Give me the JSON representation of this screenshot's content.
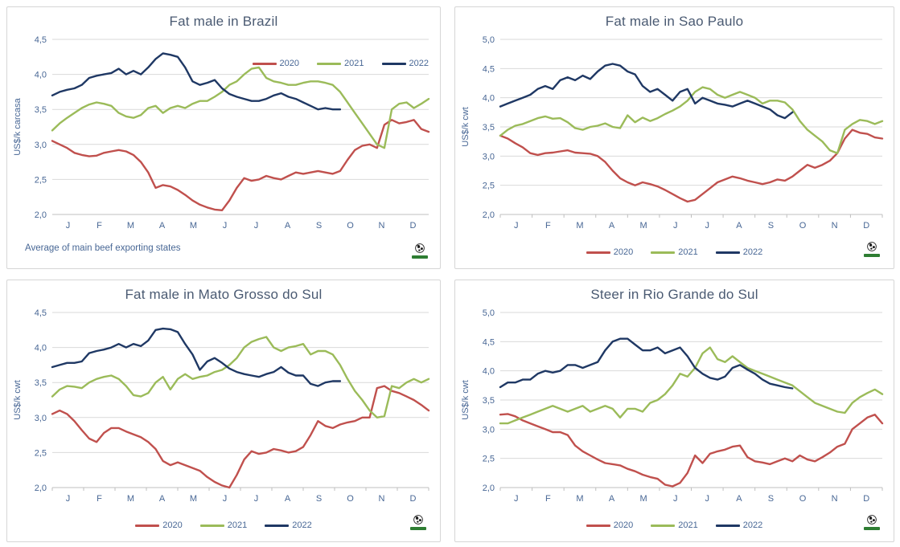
{
  "colors": {
    "red2020": "#C0504D",
    "green2021": "#9BBB59",
    "navy2022": "#1F3864",
    "grid": "#D9D9D9",
    "axis_line": "#BFBFBF",
    "tick_text": "#486795",
    "title_text": "#4A5A72"
  },
  "footnote": "Average  of main beef exporting states",
  "logo_name": "globe-logo",
  "chart_data": [
    {
      "type": "line",
      "title": "Fat male in Brazil",
      "ylabel": "US$/k carcasa",
      "ylim": [
        2.0,
        4.5
      ],
      "ytick_step": 0.5,
      "decimal_separator": ",",
      "grid": true,
      "axis_ticks": false,
      "legend_position": "top-right-inside",
      "x_unit": "week",
      "categories": [
        "J",
        "F",
        "M",
        "A",
        "M",
        "J",
        "J",
        "A",
        "S",
        "O",
        "N",
        "D"
      ],
      "series": [
        {
          "name": "2020",
          "color": "#C0504D",
          "values": [
            3.05,
            3.0,
            2.95,
            2.88,
            2.85,
            2.83,
            2.84,
            2.88,
            2.9,
            2.92,
            2.9,
            2.85,
            2.75,
            2.6,
            2.38,
            2.42,
            2.4,
            2.35,
            2.28,
            2.2,
            2.14,
            2.1,
            2.07,
            2.06,
            2.2,
            2.38,
            2.52,
            2.48,
            2.5,
            2.55,
            2.52,
            2.5,
            2.55,
            2.6,
            2.58,
            2.6,
            2.62,
            2.6,
            2.58,
            2.62,
            2.78,
            2.92,
            2.98,
            3.0,
            2.95,
            3.28,
            3.35,
            3.3,
            3.32,
            3.35,
            3.22,
            3.18
          ]
        },
        {
          "name": "2021",
          "color": "#9BBB59",
          "values": [
            3.2,
            3.3,
            3.38,
            3.45,
            3.52,
            3.57,
            3.6,
            3.58,
            3.55,
            3.45,
            3.4,
            3.38,
            3.42,
            3.52,
            3.55,
            3.45,
            3.52,
            3.55,
            3.52,
            3.58,
            3.62,
            3.62,
            3.68,
            3.75,
            3.85,
            3.9,
            4.0,
            4.08,
            4.1,
            3.95,
            3.9,
            3.88,
            3.85,
            3.85,
            3.88,
            3.9,
            3.9,
            3.88,
            3.85,
            3.75,
            3.6,
            3.45,
            3.3,
            3.15,
            3.0,
            2.95,
            3.5,
            3.58,
            3.6,
            3.52,
            3.58,
            3.65
          ]
        },
        {
          "name": "2022",
          "color": "#1F3864",
          "values": [
            3.7,
            3.75,
            3.78,
            3.8,
            3.85,
            3.95,
            3.98,
            4.0,
            4.02,
            4.08,
            4.0,
            4.05,
            4.0,
            4.1,
            4.22,
            4.3,
            4.28,
            4.25,
            4.1,
            3.9,
            3.85,
            3.88,
            3.92,
            3.8,
            3.72,
            3.68,
            3.65,
            3.62,
            3.62,
            3.65,
            3.7,
            3.73,
            3.68,
            3.65,
            3.6,
            3.55,
            3.5,
            3.52,
            3.5,
            3.5
          ]
        }
      ]
    },
    {
      "type": "line",
      "title": "Fat male in Sao Paulo",
      "ylabel": "US$/k cwt",
      "ylim": [
        2.0,
        5.0
      ],
      "ytick_step": 0.5,
      "decimal_separator": ",",
      "grid": true,
      "axis_ticks": true,
      "legend_position": "bottom",
      "x_unit": "week",
      "categories": [
        "J",
        "F",
        "M",
        "A",
        "M",
        "J",
        "J",
        "A",
        "S",
        "O",
        "N",
        "D"
      ],
      "series": [
        {
          "name": "2020",
          "color": "#C0504D",
          "values": [
            3.35,
            3.3,
            3.22,
            3.15,
            3.05,
            3.02,
            3.05,
            3.06,
            3.08,
            3.1,
            3.06,
            3.05,
            3.04,
            3.0,
            2.9,
            2.75,
            2.62,
            2.55,
            2.5,
            2.55,
            2.52,
            2.48,
            2.42,
            2.35,
            2.28,
            2.22,
            2.25,
            2.35,
            2.45,
            2.55,
            2.6,
            2.65,
            2.62,
            2.58,
            2.55,
            2.52,
            2.55,
            2.6,
            2.58,
            2.65,
            2.75,
            2.85,
            2.8,
            2.85,
            2.92,
            3.05,
            3.3,
            3.45,
            3.4,
            3.38,
            3.32,
            3.3
          ]
        },
        {
          "name": "2021",
          "color": "#9BBB59",
          "values": [
            3.35,
            3.45,
            3.52,
            3.55,
            3.6,
            3.65,
            3.68,
            3.64,
            3.65,
            3.58,
            3.48,
            3.45,
            3.5,
            3.52,
            3.56,
            3.5,
            3.48,
            3.7,
            3.58,
            3.66,
            3.6,
            3.65,
            3.72,
            3.78,
            3.85,
            3.95,
            4.1,
            4.18,
            4.15,
            4.05,
            4.0,
            4.05,
            4.1,
            4.05,
            4.0,
            3.9,
            3.95,
            3.95,
            3.92,
            3.8,
            3.6,
            3.45,
            3.35,
            3.25,
            3.1,
            3.05,
            3.45,
            3.55,
            3.62,
            3.6,
            3.55,
            3.6
          ]
        },
        {
          "name": "2022",
          "color": "#1F3864",
          "values": [
            3.85,
            3.9,
            3.95,
            4.0,
            4.05,
            4.15,
            4.2,
            4.15,
            4.3,
            4.35,
            4.3,
            4.38,
            4.32,
            4.45,
            4.55,
            4.58,
            4.55,
            4.45,
            4.4,
            4.2,
            4.1,
            4.15,
            4.05,
            3.95,
            4.1,
            4.15,
            3.9,
            4.0,
            3.95,
            3.9,
            3.88,
            3.85,
            3.9,
            3.95,
            3.9,
            3.85,
            3.8,
            3.7,
            3.65,
            3.75
          ]
        }
      ]
    },
    {
      "type": "line",
      "title": "Fat male in Mato Grosso do Sul",
      "ylabel": "US$/k cwt",
      "ylim": [
        2.0,
        4.5
      ],
      "ytick_step": 0.5,
      "decimal_separator": ",",
      "grid": true,
      "axis_ticks": true,
      "legend_position": "bottom",
      "x_unit": "week",
      "categories": [
        "J",
        "F",
        "M",
        "A",
        "M",
        "J",
        "J",
        "A",
        "S",
        "O",
        "N",
        "D"
      ],
      "series": [
        {
          "name": "2020",
          "color": "#C0504D",
          "values": [
            3.05,
            3.1,
            3.05,
            2.95,
            2.82,
            2.7,
            2.65,
            2.78,
            2.85,
            2.85,
            2.8,
            2.76,
            2.72,
            2.65,
            2.55,
            2.38,
            2.32,
            2.36,
            2.32,
            2.28,
            2.24,
            2.15,
            2.08,
            2.03,
            2.0,
            2.18,
            2.4,
            2.52,
            2.48,
            2.5,
            2.55,
            2.53,
            2.5,
            2.52,
            2.58,
            2.75,
            2.95,
            2.88,
            2.85,
            2.9,
            2.93,
            2.95,
            3.0,
            3.0,
            3.42,
            3.45,
            3.38,
            3.35,
            3.3,
            3.25,
            3.18,
            3.1
          ]
        },
        {
          "name": "2021",
          "color": "#9BBB59",
          "values": [
            3.3,
            3.4,
            3.45,
            3.44,
            3.42,
            3.5,
            3.55,
            3.58,
            3.6,
            3.55,
            3.45,
            3.32,
            3.3,
            3.35,
            3.5,
            3.58,
            3.4,
            3.55,
            3.62,
            3.55,
            3.58,
            3.6,
            3.65,
            3.68,
            3.75,
            3.85,
            4.0,
            4.08,
            4.12,
            4.15,
            4.0,
            3.95,
            4.0,
            4.02,
            4.05,
            3.9,
            3.95,
            3.95,
            3.9,
            3.75,
            3.55,
            3.38,
            3.25,
            3.1,
            3.0,
            3.02,
            3.45,
            3.42,
            3.5,
            3.55,
            3.5,
            3.55
          ]
        },
        {
          "name": "2022",
          "color": "#1F3864",
          "values": [
            3.72,
            3.75,
            3.78,
            3.78,
            3.8,
            3.92,
            3.95,
            3.97,
            4.0,
            4.05,
            4.0,
            4.05,
            4.02,
            4.1,
            4.25,
            4.27,
            4.26,
            4.22,
            4.05,
            3.9,
            3.68,
            3.8,
            3.85,
            3.78,
            3.7,
            3.65,
            3.62,
            3.6,
            3.58,
            3.62,
            3.65,
            3.72,
            3.64,
            3.6,
            3.6,
            3.48,
            3.45,
            3.5,
            3.52,
            3.52
          ]
        }
      ]
    },
    {
      "type": "line",
      "title": "Steer  in Rio Grande do Sul",
      "ylabel": "US$/k cwt",
      "ylim": [
        2.0,
        5.0
      ],
      "ytick_step": 0.5,
      "decimal_separator": ",",
      "grid": true,
      "axis_ticks": true,
      "legend_position": "bottom",
      "x_unit": "week",
      "categories": [
        "J",
        "F",
        "M",
        "A",
        "M",
        "J",
        "J",
        "A",
        "S",
        "O",
        "N",
        "D"
      ],
      "series": [
        {
          "name": "2020",
          "color": "#C0504D",
          "values": [
            3.25,
            3.26,
            3.22,
            3.15,
            3.1,
            3.05,
            3.0,
            2.95,
            2.95,
            2.9,
            2.72,
            2.62,
            2.55,
            2.48,
            2.42,
            2.4,
            2.38,
            2.32,
            2.28,
            2.22,
            2.18,
            2.15,
            2.05,
            2.02,
            2.08,
            2.25,
            2.55,
            2.42,
            2.58,
            2.62,
            2.65,
            2.7,
            2.72,
            2.52,
            2.45,
            2.43,
            2.4,
            2.45,
            2.5,
            2.45,
            2.55,
            2.48,
            2.45,
            2.52,
            2.6,
            2.7,
            2.75,
            3.0,
            3.1,
            3.2,
            3.25,
            3.1
          ]
        },
        {
          "name": "2021",
          "color": "#9BBB59",
          "values": [
            3.1,
            3.1,
            3.15,
            3.2,
            3.25,
            3.3,
            3.35,
            3.4,
            3.35,
            3.3,
            3.35,
            3.4,
            3.3,
            3.35,
            3.4,
            3.35,
            3.2,
            3.35,
            3.35,
            3.3,
            3.45,
            3.5,
            3.6,
            3.75,
            3.95,
            3.9,
            4.05,
            4.3,
            4.4,
            4.2,
            4.15,
            4.25,
            4.15,
            4.05,
            4.0,
            3.95,
            3.9,
            3.85,
            3.8,
            3.75,
            3.65,
            3.55,
            3.45,
            3.4,
            3.35,
            3.3,
            3.28,
            3.45,
            3.55,
            3.62,
            3.68,
            3.6
          ]
        },
        {
          "name": "2022",
          "color": "#1F3864",
          "values": [
            3.72,
            3.8,
            3.8,
            3.85,
            3.85,
            3.95,
            4.0,
            3.97,
            4.0,
            4.1,
            4.1,
            4.05,
            4.1,
            4.15,
            4.35,
            4.5,
            4.55,
            4.55,
            4.45,
            4.35,
            4.35,
            4.4,
            4.3,
            4.35,
            4.4,
            4.25,
            4.05,
            3.95,
            3.88,
            3.85,
            3.9,
            4.05,
            4.1,
            4.02,
            3.95,
            3.85,
            3.78,
            3.75,
            3.72,
            3.7
          ]
        }
      ]
    }
  ]
}
